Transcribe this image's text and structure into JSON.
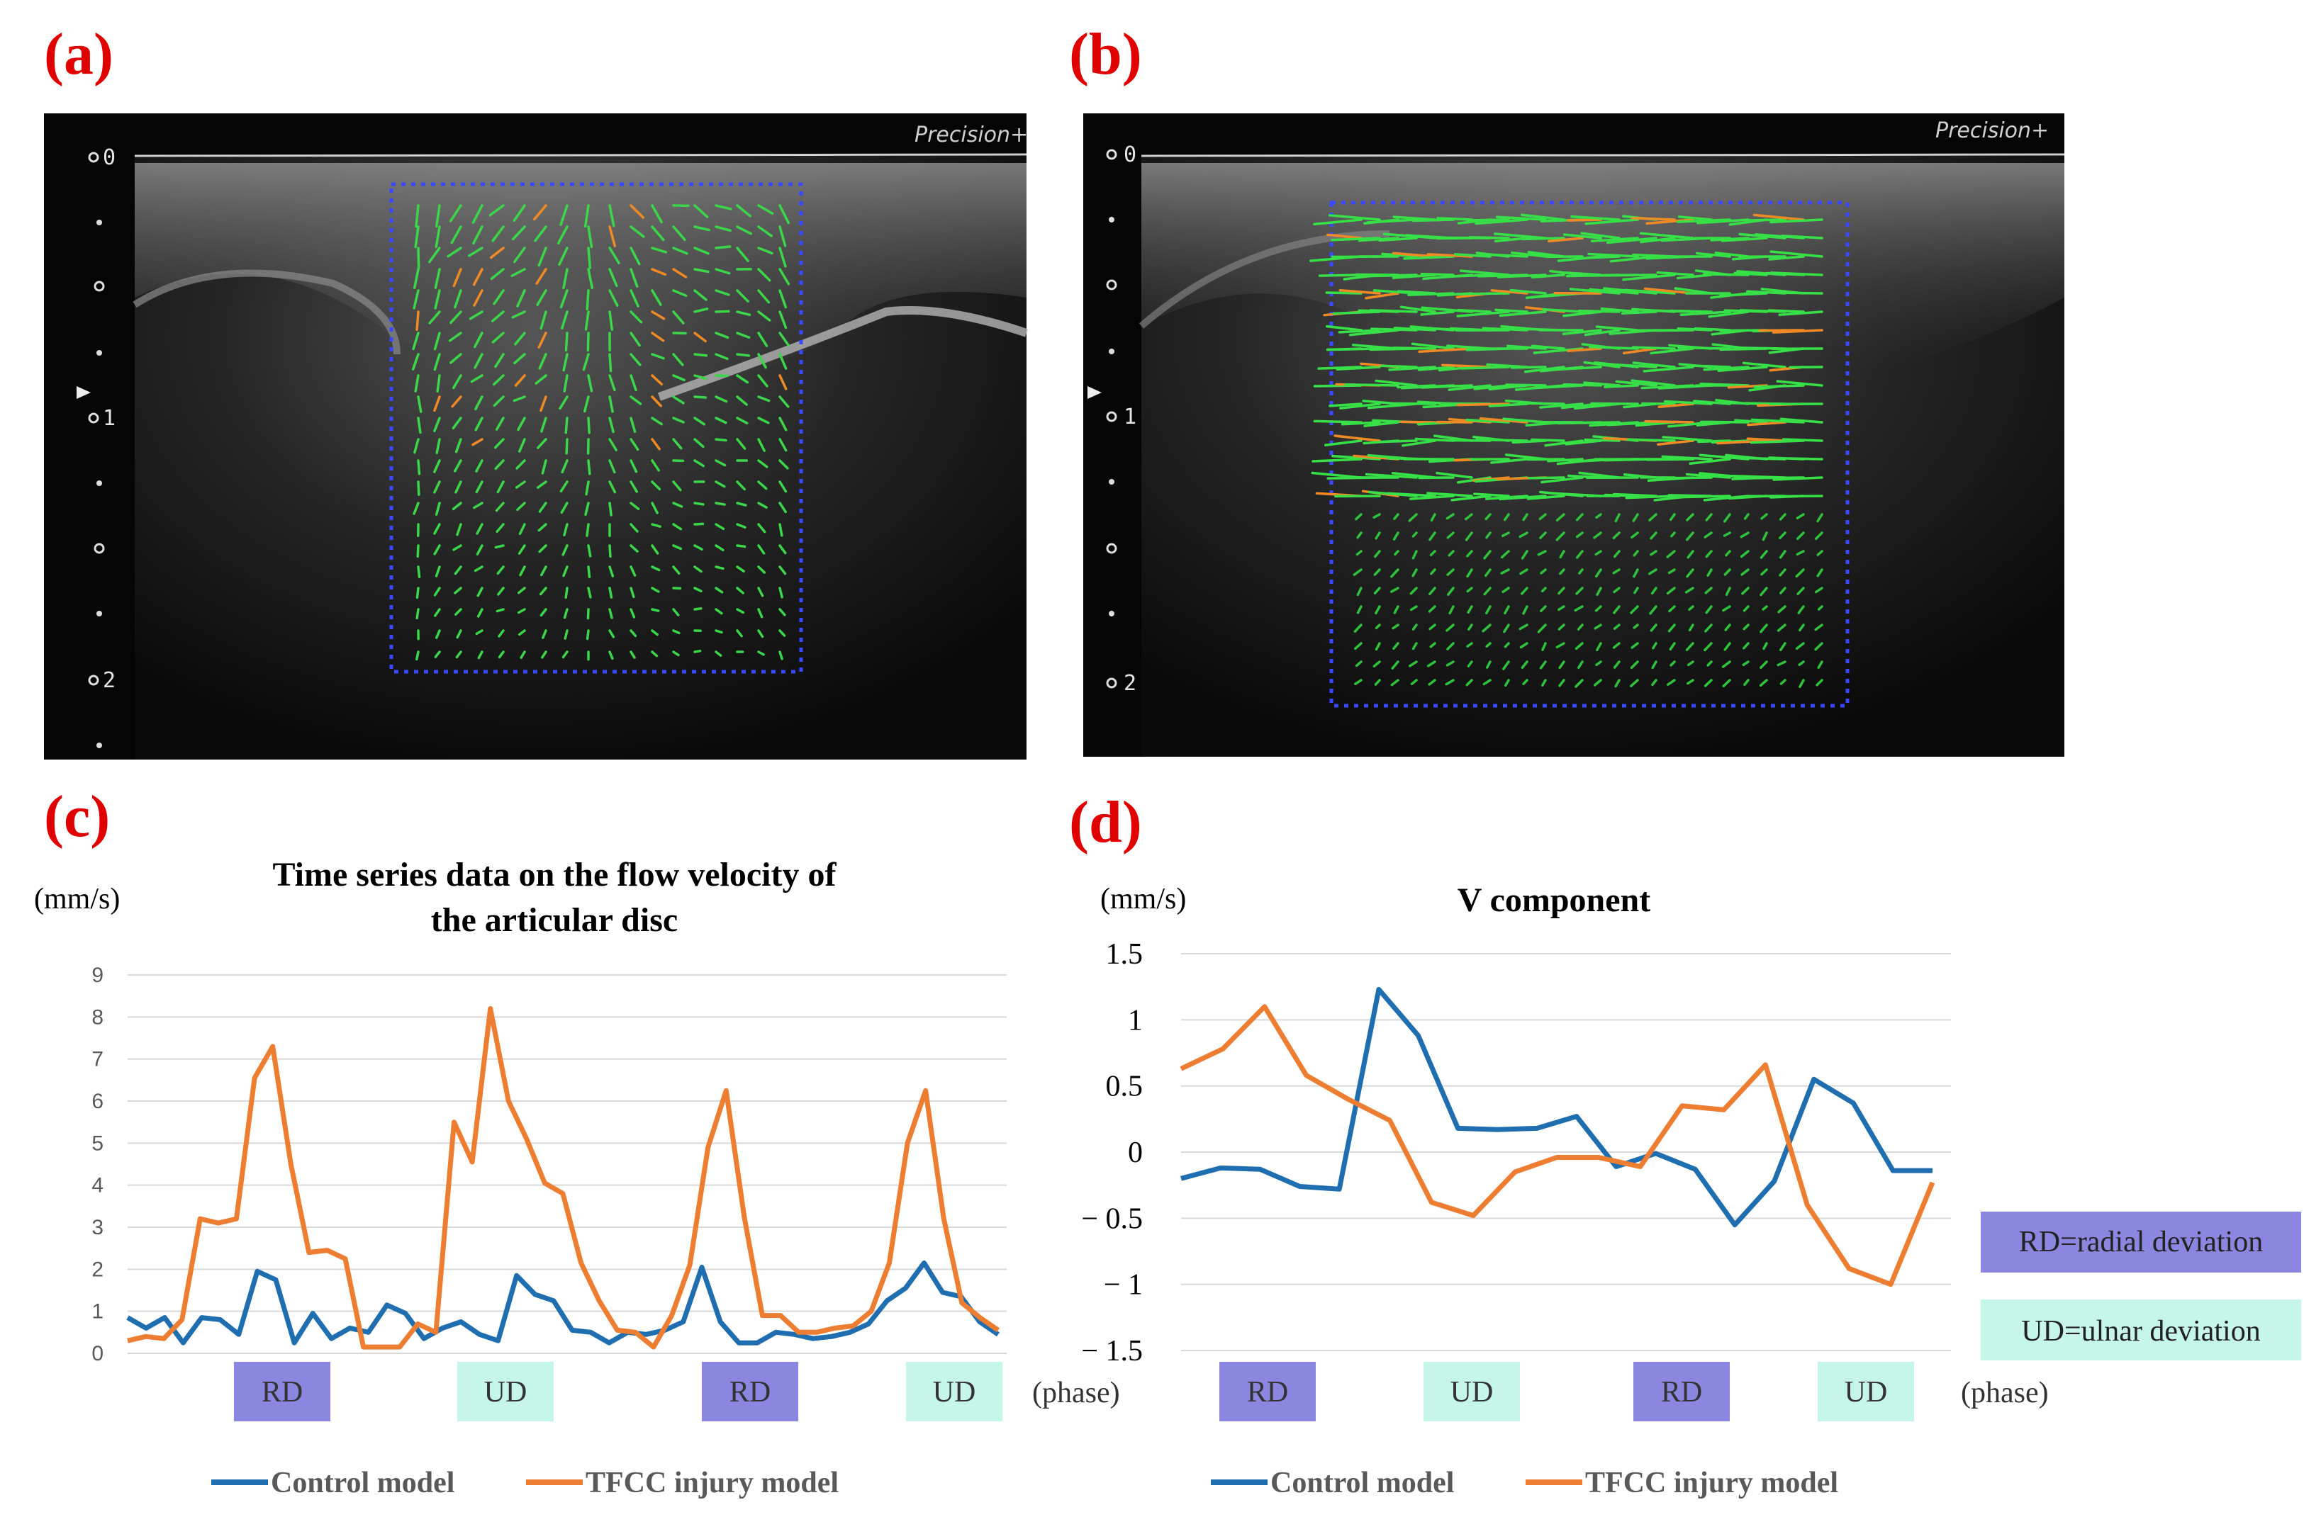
{
  "panels": {
    "a": {
      "label": "(a)",
      "ultrasound_label": "Precision+",
      "depth_labels": [
        "0",
        "1",
        "2"
      ]
    },
    "b": {
      "label": "(b)",
      "ultrasound_label": "Precision+",
      "depth_labels": [
        "0",
        "1",
        "2"
      ]
    },
    "c": {
      "label": "(c)"
    },
    "d": {
      "label": "(d)"
    }
  },
  "colors": {
    "control": "#1f6eb0",
    "tfcc": "#ed7d31",
    "rd_box": "#8b86e0",
    "ud_box": "#c6f5e9",
    "label_red": "#e00000"
  },
  "chart_data": [
    {
      "type": "line",
      "id": "c",
      "title": "Time series data on the flow velocity of the articular disc",
      "title_lines": [
        "Time series data on the flow velocity of",
        "the articular disc"
      ],
      "ylabel": "(mm/s)",
      "ylim": [
        0,
        9
      ],
      "yticks": [
        "0",
        "1",
        "2",
        "3",
        "4",
        "5",
        "6",
        "7",
        "8",
        "9"
      ],
      "phase_labels": [
        "RD",
        "UD",
        "RD",
        "UD"
      ],
      "series": [
        {
          "name": "Control model",
          "color": "#1f6eb0",
          "values": [
            0.85,
            0.6,
            0.85,
            0.25,
            0.85,
            0.8,
            0.45,
            1.95,
            1.75,
            0.25,
            0.95,
            0.35,
            0.6,
            0.5,
            1.15,
            0.95,
            0.35,
            0.6,
            0.75,
            0.45,
            0.3,
            1.85,
            1.4,
            1.25,
            0.55,
            0.5,
            0.25,
            0.5,
            0.45,
            0.55,
            0.75,
            2.05,
            0.75,
            0.25,
            0.25,
            0.5,
            0.45,
            0.35,
            0.4,
            0.5,
            0.7,
            1.25,
            1.55,
            2.15,
            1.45,
            1.35,
            0.75,
            0.45
          ]
        },
        {
          "name": "TFCC injury model",
          "color": "#ed7d31",
          "values": [
            0.3,
            0.4,
            0.35,
            0.8,
            3.2,
            3.1,
            3.2,
            6.55,
            7.3,
            4.5,
            2.4,
            2.45,
            2.25,
            0.15,
            0.15,
            0.15,
            0.7,
            0.5,
            5.5,
            4.55,
            8.2,
            6.0,
            5.1,
            4.05,
            3.8,
            2.15,
            1.25,
            0.55,
            0.5,
            0.15,
            0.9,
            2.1,
            4.9,
            6.25,
            3.25,
            0.9,
            0.9,
            0.5,
            0.5,
            0.6,
            0.65,
            1.0,
            2.15,
            5.0,
            6.25,
            3.2,
            1.2,
            0.85,
            0.55
          ]
        }
      ]
    },
    {
      "type": "line",
      "id": "d",
      "title": "V component",
      "ylabel": "(mm/s)",
      "xlabel": "(phase)",
      "ylim": [
        -1.5,
        1.5
      ],
      "yticks": [
        "1.5",
        "1",
        "0.5",
        "0",
        "− 0.5",
        "− 1",
        "− 1.5"
      ],
      "phase_labels": [
        "RD",
        "UD",
        "RD",
        "UD"
      ],
      "series": [
        {
          "name": "Control model",
          "color": "#1f6eb0",
          "values": [
            -0.2,
            -0.12,
            -0.13,
            -0.26,
            -0.28,
            1.23,
            0.88,
            0.18,
            0.17,
            0.18,
            0.27,
            -0.11,
            -0.01,
            -0.13,
            -0.55,
            -0.22,
            0.55,
            0.37,
            -0.14,
            -0.14
          ]
        },
        {
          "name": "TFCC injury model",
          "color": "#ed7d31",
          "values": [
            0.63,
            0.78,
            1.1,
            0.58,
            0.4,
            0.24,
            -0.38,
            -0.48,
            -0.15,
            -0.04,
            -0.04,
            -0.11,
            0.35,
            0.32,
            0.66,
            -0.4,
            -0.88,
            -1.0,
            -0.23
          ]
        }
      ]
    }
  ],
  "legend": {
    "control": "Control model",
    "tfcc": "TFCC injury model"
  },
  "phase_axis_label": "(phase)",
  "key": {
    "rd": "RD=radial deviation",
    "ud": "UD=ulnar deviation"
  }
}
